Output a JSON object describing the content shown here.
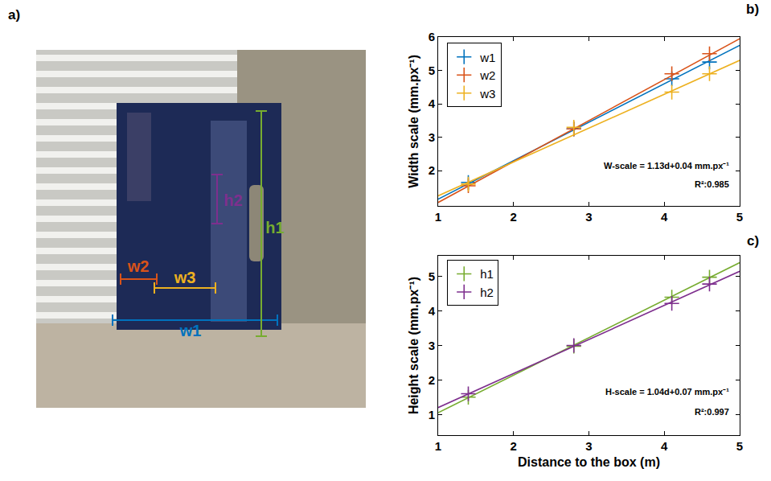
{
  "photo": {
    "label": "a)",
    "measurements": [
      {
        "name": "w1",
        "color": "#0072bd"
      },
      {
        "name": "w2",
        "color": "#d95319"
      },
      {
        "name": "w3",
        "color": "#edb120"
      },
      {
        "name": "h1",
        "color": "#77ac30"
      },
      {
        "name": "h2",
        "color": "#7e2f8e"
      }
    ]
  },
  "chart_data": [
    {
      "label": "b)",
      "type": "scatter",
      "y_label": "Width scale (mm.px⁻¹)",
      "annotations": [
        "W-scale = 1.13d+0.04 mm.px⁻¹",
        "R²:0.985"
      ],
      "xlim": [
        1,
        5
      ],
      "xticks": [
        1,
        2,
        3,
        4,
        5
      ],
      "ylim": [
        0.95,
        6
      ],
      "yticks": [
        2,
        3,
        4,
        5,
        6
      ],
      "grid": false,
      "legend": "top-left",
      "marker": "cross",
      "line_style": "solid",
      "series": [
        {
          "name": "w1",
          "color": "#0072bd",
          "x": [
            1.4,
            2.8,
            4.1,
            4.6
          ],
          "values": [
            1.65,
            3.25,
            4.75,
            5.25
          ],
          "fit": {
            "x": [
              1,
              5
            ],
            "values": [
              1.15,
              5.75
            ]
          }
        },
        {
          "name": "w2",
          "color": "#d95319",
          "x": [
            1.4,
            2.8,
            4.1,
            4.6
          ],
          "values": [
            1.55,
            3.25,
            4.9,
            5.5
          ],
          "fit": {
            "x": [
              1,
              5
            ],
            "values": [
              1.05,
              5.95
            ]
          }
        },
        {
          "name": "w3",
          "color": "#edb120",
          "x": [
            1.4,
            2.8,
            4.1,
            4.6
          ],
          "values": [
            1.6,
            3.3,
            4.35,
            4.9
          ],
          "fit": {
            "x": [
              1,
              5
            ],
            "values": [
              1.25,
              5.3
            ]
          }
        }
      ]
    },
    {
      "label": "c)",
      "type": "scatter",
      "x_label": "Distance to the box (m)",
      "y_label": "Height scale (mm.px⁻¹)",
      "annotations": [
        "H-scale = 1.04d+0.07 mm.px⁻¹",
        "R²:0.997"
      ],
      "xlim": [
        1,
        5
      ],
      "xticks": [
        1,
        2,
        3,
        4,
        5
      ],
      "ylim": [
        0.4,
        5.6
      ],
      "yticks": [
        1,
        2,
        3,
        4,
        5
      ],
      "grid": false,
      "legend": "top-left",
      "marker": "cross",
      "line_style": "solid",
      "series": [
        {
          "name": "h1",
          "color": "#77ac30",
          "x": [
            1.4,
            2.8,
            4.1,
            4.6
          ],
          "values": [
            1.5,
            2.98,
            4.4,
            4.98
          ],
          "fit": {
            "x": [
              1,
              5
            ],
            "values": [
              1.05,
              5.4
            ]
          }
        },
        {
          "name": "h2",
          "color": "#7e2f8e",
          "x": [
            1.4,
            2.8,
            4.1,
            4.6
          ],
          "values": [
            1.6,
            3.0,
            4.22,
            4.78
          ],
          "fit": {
            "x": [
              1,
              5
            ],
            "values": [
              1.2,
              5.15
            ]
          }
        }
      ]
    }
  ]
}
